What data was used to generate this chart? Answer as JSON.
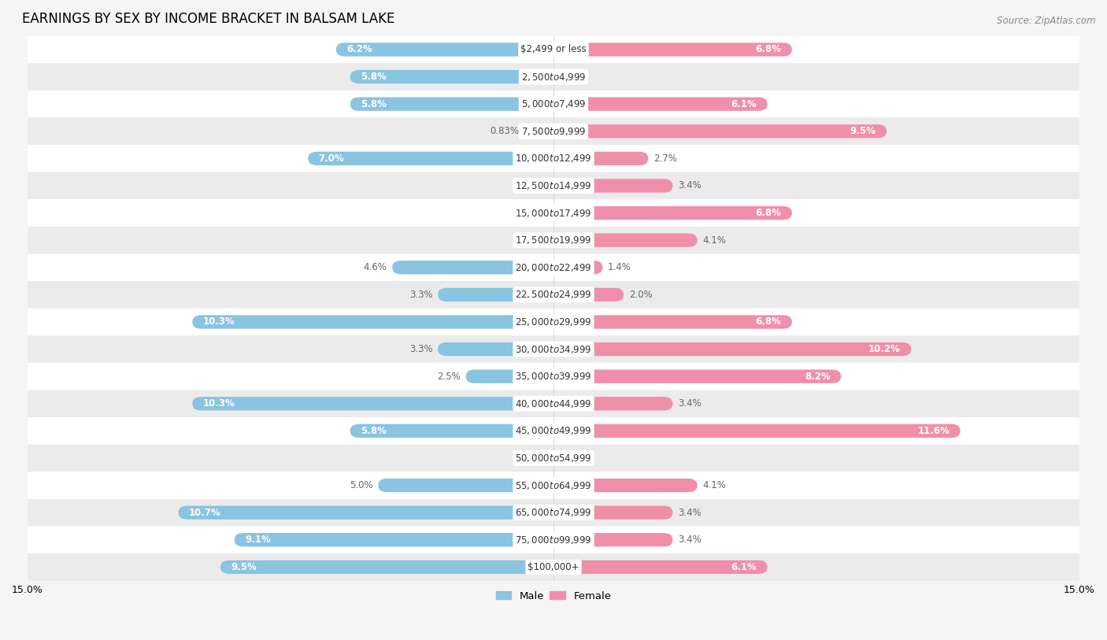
{
  "title": "EARNINGS BY SEX BY INCOME BRACKET IN BALSAM LAKE",
  "source": "Source: ZipAtlas.com",
  "categories": [
    "$2,499 or less",
    "$2,500 to $4,999",
    "$5,000 to $7,499",
    "$7,500 to $9,999",
    "$10,000 to $12,499",
    "$12,500 to $14,999",
    "$15,000 to $17,499",
    "$17,500 to $19,999",
    "$20,000 to $22,499",
    "$22,500 to $24,999",
    "$25,000 to $29,999",
    "$30,000 to $34,999",
    "$35,000 to $39,999",
    "$40,000 to $44,999",
    "$45,000 to $49,999",
    "$50,000 to $54,999",
    "$55,000 to $64,999",
    "$65,000 to $74,999",
    "$75,000 to $99,999",
    "$100,000+"
  ],
  "male_values": [
    6.2,
    5.8,
    5.8,
    0.83,
    7.0,
    0.0,
    0.0,
    0.0,
    4.6,
    3.3,
    10.3,
    3.3,
    2.5,
    10.3,
    5.8,
    0.0,
    5.0,
    10.7,
    9.1,
    9.5
  ],
  "female_values": [
    6.8,
    0.0,
    6.1,
    9.5,
    2.7,
    3.4,
    6.8,
    4.1,
    1.4,
    2.0,
    6.8,
    10.2,
    8.2,
    3.4,
    11.6,
    0.0,
    4.1,
    3.4,
    3.4,
    6.1
  ],
  "male_color": "#89c4e1",
  "female_color": "#f08faa",
  "male_label_inside_color": "white",
  "male_label_outside_color": "#666666",
  "female_label_inside_color": "white",
  "female_label_outside_color": "#666666",
  "male_label": "Male",
  "female_label": "Female",
  "axis_max": 15.0,
  "row_colors": [
    "#ffffff",
    "#ebebeb"
  ],
  "title_fontsize": 12,
  "label_fontsize": 8.5,
  "cat_fontsize": 8.5,
  "source_fontsize": 8.5,
  "inside_threshold": 5.5
}
